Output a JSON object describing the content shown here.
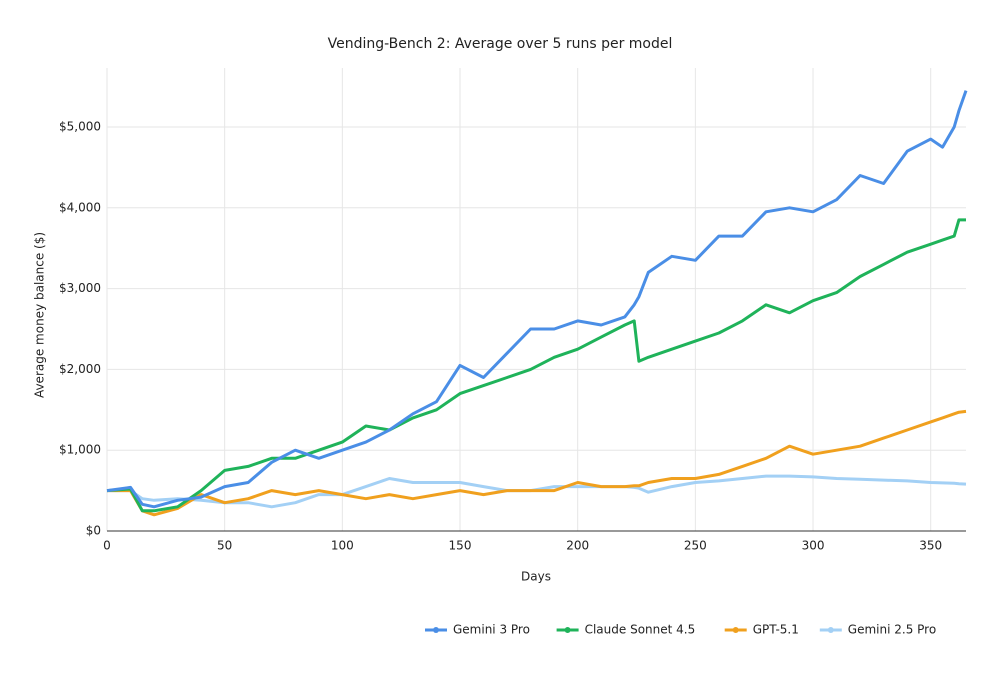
{
  "chart_data": {
    "type": "line",
    "title": "Vending-Bench 2: Average over 5 runs per model",
    "x_label": "Days",
    "y_label": "Average money balance ($)",
    "x": [
      0,
      10,
      15,
      20,
      30,
      40,
      50,
      60,
      70,
      80,
      90,
      100,
      110,
      120,
      130,
      140,
      150,
      160,
      170,
      180,
      190,
      200,
      210,
      220,
      224,
      226,
      230,
      240,
      250,
      260,
      270,
      280,
      290,
      300,
      310,
      320,
      330,
      340,
      350,
      355,
      360,
      362,
      365
    ],
    "xlim": [
      0,
      365
    ],
    "xticks": [
      0,
      50,
      100,
      150,
      200,
      250,
      300,
      350
    ],
    "ylim": [
      0,
      5730
    ],
    "yticks": [
      {
        "value": 0,
        "label": "$0"
      },
      {
        "value": 1000,
        "label": "$1,000"
      },
      {
        "value": 2000,
        "label": "$2,000"
      },
      {
        "value": 3000,
        "label": "$3,000"
      },
      {
        "value": 4000,
        "label": "$4,000"
      },
      {
        "value": 5000,
        "label": "$5,000"
      }
    ],
    "grid": true,
    "legend": "bottom-right",
    "series": [
      {
        "name": "Gemini 3 Pro",
        "color": "#4a8ee6",
        "values": [
          500,
          540,
          330,
          300,
          380,
          420,
          550,
          600,
          850,
          1000,
          900,
          1000,
          1100,
          1250,
          1450,
          1600,
          2050,
          1900,
          2200,
          2500,
          2500,
          2600,
          2550,
          2650,
          2800,
          2900,
          3200,
          3400,
          3350,
          3650,
          3650,
          3950,
          4000,
          3950,
          4100,
          4400,
          4300,
          4700,
          4850,
          4750,
          5000,
          5200,
          5450
        ]
      },
      {
        "name": "Claude Sonnet 4.5",
        "color": "#1fb35a",
        "values": [
          500,
          520,
          250,
          250,
          300,
          500,
          750,
          800,
          900,
          900,
          1000,
          1100,
          1300,
          1250,
          1400,
          1500,
          1700,
          1800,
          1900,
          2000,
          2150,
          2250,
          2400,
          2550,
          2600,
          2100,
          2150,
          2250,
          2350,
          2450,
          2600,
          2800,
          2700,
          2850,
          2950,
          3150,
          3300,
          3450,
          3550,
          3600,
          3650,
          3850,
          3850
        ]
      },
      {
        "name": "GPT-5.1",
        "color": "#f0a01e",
        "values": [
          500,
          500,
          250,
          200,
          280,
          450,
          350,
          400,
          500,
          450,
          500,
          450,
          400,
          450,
          400,
          450,
          500,
          450,
          500,
          500,
          500,
          600,
          550,
          550,
          560,
          560,
          600,
          650,
          650,
          700,
          800,
          900,
          1050,
          950,
          1000,
          1050,
          1150,
          1250,
          1350,
          1400,
          1450,
          1470,
          1480
        ]
      },
      {
        "name": "Gemini 2.5 Pro",
        "color": "#a3d0f5",
        "values": [
          500,
          500,
          400,
          380,
          400,
          380,
          350,
          350,
          300,
          350,
          450,
          450,
          550,
          650,
          600,
          600,
          600,
          550,
          500,
          500,
          550,
          550,
          550,
          550,
          540,
          530,
          480,
          550,
          600,
          620,
          650,
          680,
          680,
          670,
          650,
          640,
          630,
          620,
          600,
          595,
          590,
          585,
          580
        ]
      }
    ]
  }
}
